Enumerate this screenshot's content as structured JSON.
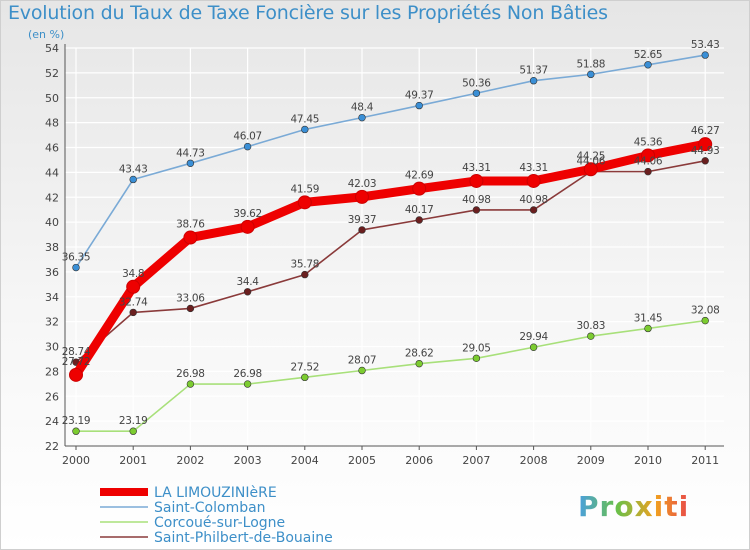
{
  "header": {
    "title": "Evolution du Taux de Taxe Foncière sur les Propriétés Non Bâties",
    "unit": "(en %)"
  },
  "logo": {
    "text": "Proxiti"
  },
  "colors": {
    "axis": "#555555",
    "grid": "#ffffff",
    "label_text": "#444444",
    "title": "#3d8fc8",
    "legend_text": "#3d8fc8"
  },
  "chart_data": {
    "type": "line",
    "title": "Evolution du Taux de Taxe Foncière sur les Propriétés Non Bâties",
    "xlabel": "",
    "ylabel": "(en %)",
    "ylim": [
      22,
      54
    ],
    "yticks": [
      22,
      24,
      26,
      28,
      30,
      32,
      34,
      36,
      38,
      40,
      42,
      44,
      46,
      48,
      50,
      52,
      54
    ],
    "categories": [
      "2000",
      "2001",
      "2002",
      "2003",
      "2004",
      "2005",
      "2006",
      "2007",
      "2008",
      "2009",
      "2010",
      "2011"
    ],
    "series": [
      {
        "name": "Saint-Colomban",
        "color": "#7aaad6",
        "marker": "#3a8fd6",
        "values": [
          36.35,
          43.43,
          44.73,
          46.07,
          47.45,
          48.4,
          49.37,
          50.36,
          51.37,
          51.88,
          52.65,
          53.43
        ],
        "labels": [
          "36.35",
          "43.43",
          "44.73",
          "46.07",
          "47.45",
          "48.4",
          "49.37",
          "50.36",
          "51.37",
          "51.88",
          "52.65",
          "53.43"
        ]
      },
      {
        "name": "Corcoué-sur-Logne",
        "color": "#a8e07a",
        "marker": "#7ccc30",
        "values": [
          23.19,
          23.19,
          26.98,
          26.98,
          27.52,
          28.07,
          28.62,
          29.05,
          29.94,
          30.83,
          31.45,
          32.08
        ],
        "labels": [
          "23.19",
          "23.19",
          "26.98",
          "26.98",
          "27.52",
          "28.07",
          "28.62",
          "29.05",
          "29.94",
          "30.83",
          "31.45",
          "32.08"
        ]
      },
      {
        "name": "Saint-Philbert-de-Bouaine",
        "color": "#8a3a3a",
        "marker": "#6b1f1f",
        "values": [
          28.74,
          32.74,
          33.06,
          34.4,
          35.78,
          39.37,
          40.17,
          40.98,
          40.98,
          44.06,
          44.06,
          44.93
        ],
        "labels": [
          "28.74",
          "32.74",
          "33.06",
          "34.4",
          "35.78",
          "39.37",
          "40.17",
          "40.98",
          "40.98",
          "44.06",
          "44.06",
          "44.93"
        ]
      },
      {
        "name": "LA LIMOUZINIèRE",
        "color": "#ee0000",
        "marker": "#ee0000",
        "values": [
          27.72,
          34.8,
          38.76,
          39.62,
          41.59,
          42.03,
          42.69,
          43.31,
          43.31,
          44.25,
          45.36,
          46.27
        ],
        "labels": [
          "27.72",
          "34.8",
          "38.76",
          "39.62",
          "41.59",
          "42.03",
          "42.69",
          "43.31",
          "43.31",
          "44.25",
          "45.36",
          "46.27"
        ]
      }
    ],
    "legend": [
      {
        "name": "LA LIMOUZINIèRE",
        "color": "#ee0000",
        "thick": true
      },
      {
        "name": "Saint-Colomban",
        "color": "#7aaad6",
        "thick": false
      },
      {
        "name": "Corcoué-sur-Logne",
        "color": "#a8e07a",
        "thick": false
      },
      {
        "name": "Saint-Philbert-de-Bouaine",
        "color": "#8a3a3a",
        "thick": false
      }
    ]
  }
}
